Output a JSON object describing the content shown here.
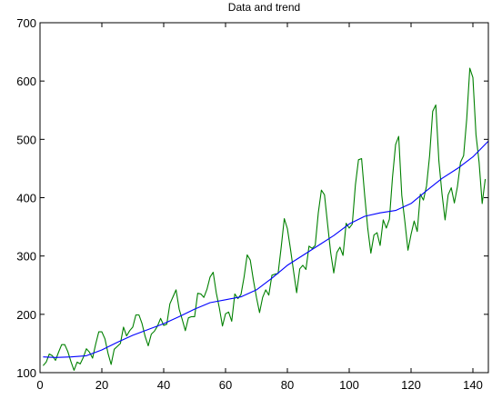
{
  "chart_data": {
    "type": "line",
    "title": "Data and trend",
    "xlabel": "",
    "ylabel": "",
    "xlim": [
      0,
      145
    ],
    "ylim": [
      100,
      700
    ],
    "xticks": [
      0,
      20,
      40,
      60,
      80,
      100,
      120,
      140
    ],
    "yticks": [
      100,
      200,
      300,
      400,
      500,
      600,
      700
    ],
    "grid": false,
    "legend": "none",
    "series": [
      {
        "color": "#008000",
        "x": [
          1,
          2,
          3,
          4,
          5,
          6,
          7,
          8,
          9,
          10,
          11,
          12,
          13,
          14,
          15,
          16,
          17,
          18,
          19,
          20,
          21,
          22,
          23,
          24,
          25,
          26,
          27,
          28,
          29,
          30,
          31,
          32,
          33,
          34,
          35,
          36,
          37,
          38,
          39,
          40,
          41,
          42,
          43,
          44,
          45,
          46,
          47,
          48,
          49,
          50,
          51,
          52,
          53,
          54,
          55,
          56,
          57,
          58,
          59,
          60,
          61,
          62,
          63,
          64,
          65,
          66,
          67,
          68,
          69,
          70,
          71,
          72,
          73,
          74,
          75,
          76,
          77,
          78,
          79,
          80,
          81,
          82,
          83,
          84,
          85,
          86,
          87,
          88,
          89,
          90,
          91,
          92,
          93,
          94,
          95,
          96,
          97,
          98,
          99,
          100,
          101,
          102,
          103,
          104,
          105,
          106,
          107,
          108,
          109,
          110,
          111,
          112,
          113,
          114,
          115,
          116,
          117,
          118,
          119,
          120,
          121,
          122,
          123,
          124,
          125,
          126,
          127,
          128,
          129,
          130,
          131,
          132,
          133,
          134,
          135,
          136,
          137,
          138,
          139,
          140,
          141,
          142,
          143,
          144
        ],
        "y": [
          112,
          118,
          132,
          129,
          121,
          135,
          148,
          148,
          136,
          119,
          104,
          118,
          115,
          126,
          141,
          135,
          125,
          149,
          170,
          170,
          158,
          133,
          114,
          140,
          145,
          150,
          178,
          163,
          172,
          178,
          199,
          199,
          184,
          162,
          146,
          166,
          171,
          180,
          193,
          181,
          183,
          218,
          230,
          242,
          209,
          191,
          172,
          194,
          196,
          196,
          236,
          235,
          229,
          243,
          264,
          272,
          237,
          211,
          180,
          201,
          204,
          188,
          235,
          227,
          234,
          264,
          302,
          293,
          259,
          229,
          203,
          229,
          242,
          233,
          267,
          269,
          270,
          315,
          364,
          347,
          312,
          274,
          237,
          278,
          284,
          277,
          317,
          313,
          318,
          374,
          413,
          405,
          355,
          306,
          271,
          306,
          315,
          301,
          356,
          348,
          355,
          422,
          465,
          467,
          404,
          347,
          305,
          336,
          340,
          318,
          362,
          348,
          363,
          435,
          491,
          505,
          404,
          359,
          310,
          337,
          360,
          342,
          406,
          396,
          420,
          472,
          548,
          559,
          463,
          407,
          362,
          405,
          417,
          391,
          419,
          461,
          472,
          535,
          622,
          606,
          508,
          461,
          390,
          432
        ]
      },
      {
        "color": "#0000ff",
        "x": [
          1,
          5,
          10,
          15,
          20,
          25,
          30,
          35,
          40,
          45,
          50,
          55,
          60,
          65,
          70,
          75,
          80,
          85,
          90,
          95,
          100,
          105,
          110,
          115,
          120,
          125,
          130,
          135,
          140,
          145
        ],
        "y": [
          127,
          126,
          127,
          129,
          139,
          152,
          164,
          174,
          184,
          196,
          209,
          220,
          225,
          230,
          242,
          262,
          284,
          301,
          318,
          335,
          355,
          368,
          374,
          378,
          390,
          412,
          433,
          450,
          470,
          497
        ]
      }
    ]
  }
}
